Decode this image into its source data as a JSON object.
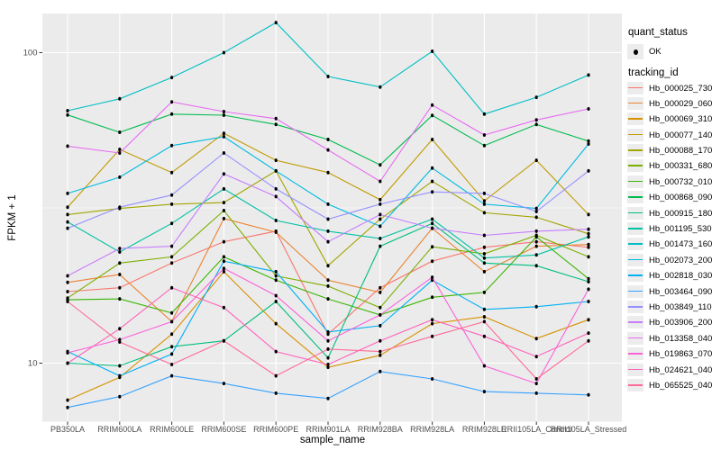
{
  "chart_data": {
    "type": "line",
    "xlabel": "sample_name",
    "ylabel": "FPKM + 1",
    "y_scale": "log10",
    "y_ticks": [
      {
        "label": "100",
        "value": 100
      },
      {
        "label": "10",
        "value": 10
      }
    ],
    "y_minor_gridlines": [
      31.62
    ],
    "ylim_log": [
      6.5,
      134
    ],
    "panel_bg": "#EBEBEB",
    "gridline_color": "#FFFFFF",
    "tick_color": "#333333",
    "tick_label_color": "#4D4D4D",
    "marker": {
      "shape": "point",
      "color": "#000000"
    },
    "legend_quant": {
      "title": "quant_status",
      "items": [
        {
          "label": "OK"
        }
      ]
    },
    "legend_tracking": {
      "title": "tracking_id"
    },
    "categories": [
      "PB350LA",
      "RRIM600LA",
      "RRIM600LE",
      "RRIM600SE",
      "RRIM600PE",
      "RRIM901LA",
      "RRIM928BA",
      "RRIM928LA",
      "RRIM928LE",
      "RRII105LA_Control",
      "RRII105LA_Stressed"
    ],
    "series": [
      {
        "name": "Hb_000025_730",
        "color": "#F8766D",
        "values": [
          17.0,
          17.5,
          21.0,
          24.6,
          26.6,
          12.4,
          17.5,
          21.3,
          23.6,
          24.6,
          23.6
        ]
      },
      {
        "name": "Hb_000029_060",
        "color": "#EA8331",
        "values": [
          18.2,
          19.3,
          13.6,
          29.2,
          26.4,
          18.5,
          16.9,
          27.2,
          19.7,
          23.8,
          24.1
        ]
      },
      {
        "name": "Hb_000069_310",
        "color": "#D89000",
        "values": [
          7.6,
          9.0,
          12.4,
          19.7,
          13.4,
          9.7,
          10.6,
          13.4,
          14.1,
          12.0,
          13.8
        ]
      },
      {
        "name": "Hb_000077_140",
        "color": "#C09B00",
        "values": [
          31.8,
          48.8,
          41.1,
          55.0,
          45.0,
          41.1,
          33.6,
          52.5,
          33.3,
          45.0,
          30.1
        ]
      },
      {
        "name": "Hb_000088_170",
        "color": "#A3A500",
        "values": [
          30.1,
          31.5,
          32.5,
          32.9,
          41.6,
          20.6,
          29.1,
          38.5,
          30.5,
          29.5,
          26.1
        ]
      },
      {
        "name": "Hb_000331_680",
        "color": "#7CAE00",
        "values": [
          16.2,
          21.0,
          22.0,
          31.0,
          19.1,
          17.7,
          15.1,
          23.7,
          22.5,
          25.8,
          22.0
        ]
      },
      {
        "name": "Hb_000732_010",
        "color": "#39B600",
        "values": [
          16.0,
          16.1,
          14.5,
          22.0,
          18.5,
          16.1,
          14.3,
          16.3,
          16.9,
          25.5,
          18.7
        ]
      },
      {
        "name": "Hb_000868_090",
        "color": "#00BB4E",
        "values": [
          63.0,
          55.4,
          63.4,
          62.9,
          58.7,
          52.5,
          43.5,
          62.8,
          50.2,
          58.7,
          51.9
        ]
      },
      {
        "name": "Hb_000915_180",
        "color": "#00BF7D",
        "values": [
          10.0,
          9.8,
          11.3,
          11.8,
          15.8,
          10.4,
          23.8,
          28.2,
          21.0,
          20.6,
          18.3
        ]
      },
      {
        "name": "Hb_001195_530",
        "color": "#00C1A3",
        "values": [
          28.5,
          22.8,
          28.2,
          36.4,
          28.8,
          26.6,
          25.2,
          29.1,
          21.8,
          22.3,
          25.5
        ]
      },
      {
        "name": "Hb_001473_160",
        "color": "#00BFC4",
        "values": [
          65.0,
          71.0,
          83.2,
          100.0,
          125.0,
          83.8,
          77.5,
          101.0,
          63.4,
          71.8,
          84.7
        ]
      },
      {
        "name": "Hb_002073_200",
        "color": "#00BAE0",
        "values": [
          35.2,
          39.7,
          50.2,
          53.6,
          41.6,
          32.5,
          27.6,
          42.5,
          32.5,
          31.5,
          50.8
        ]
      },
      {
        "name": "Hb_002818_030",
        "color": "#00B0F6",
        "values": [
          10.9,
          9.1,
          10.7,
          21.3,
          19.7,
          12.6,
          13.2,
          18.5,
          14.9,
          15.2,
          15.8
        ]
      },
      {
        "name": "Hb_003464_090",
        "color": "#35A2FF",
        "values": [
          7.2,
          7.8,
          9.1,
          8.6,
          8.0,
          7.7,
          9.4,
          8.9,
          8.1,
          8.0,
          7.9
        ]
      },
      {
        "name": "Hb_003849_110",
        "color": "#9590FF",
        "values": [
          27.2,
          31.8,
          34.8,
          47.5,
          36.4,
          29.1,
          32.5,
          35.6,
          35.2,
          30.8,
          41.6
        ]
      },
      {
        "name": "Hb_003906_200",
        "color": "#C77CFF",
        "values": [
          19.1,
          23.4,
          23.8,
          40.7,
          34.4,
          24.6,
          30.1,
          27.2,
          25.8,
          26.6,
          27.0
        ]
      },
      {
        "name": "Hb_013358_040",
        "color": "#E76BF3",
        "values": [
          50.0,
          47.5,
          69.4,
          64.6,
          61.3,
          48.6,
          38.5,
          67.8,
          54.3,
          60.7,
          65.9
        ]
      },
      {
        "name": "Hb_019863_070",
        "color": "#FA62DB",
        "values": [
          10.8,
          11.9,
          13.6,
          20.2,
          16.5,
          11.8,
          14.3,
          18.9,
          9.8,
          8.6,
          17.3
        ]
      },
      {
        "name": "Hb_024621_040",
        "color": "#FF62BC",
        "values": [
          10.0,
          12.9,
          17.5,
          15.1,
          10.9,
          9.9,
          11.8,
          13.8,
          12.2,
          10.5,
          12.5
        ]
      },
      {
        "name": "Hb_065525_040",
        "color": "#FF6A98",
        "values": [
          15.8,
          11.7,
          9.9,
          11.8,
          9.1,
          11.1,
          10.9,
          12.2,
          13.6,
          8.9,
          11.8
        ]
      }
    ]
  }
}
